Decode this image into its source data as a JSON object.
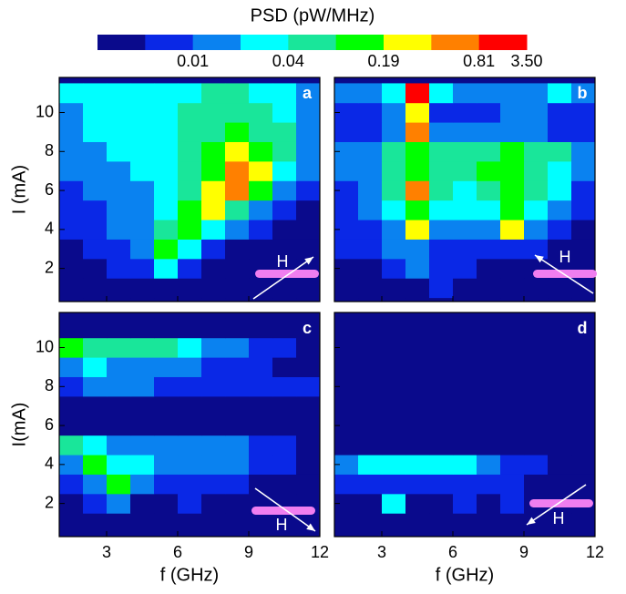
{
  "colorbar": {
    "title": "PSD (pW/MHz)",
    "colors": [
      "#0a0a8c",
      "#0a28e6",
      "#0a82f0",
      "#00ffff",
      "#19e69a",
      "#00ff00",
      "#ffff00",
      "#ff8000",
      "#ff0000"
    ],
    "bounds": [
      0.0023,
      0.0048,
      0.01,
      0.02,
      0.04,
      0.087,
      0.19,
      0.39,
      0.81,
      3.5
    ],
    "ticks": [
      0.01,
      0.04,
      0.19,
      0.81,
      {
        "value": 3.5,
        "label": "3.50"
      }
    ]
  },
  "chart_data": [
    {
      "type": "heatmap",
      "label": "a",
      "annotation": "H",
      "ylabel": "I (mA)",
      "xlim": [
        1,
        12
      ],
      "ylim": [
        0.3,
        11.8
      ],
      "xticks": [
        3,
        6,
        9,
        12
      ],
      "yticks": [
        2,
        4,
        6,
        8,
        10
      ],
      "tick_labels": {
        "x": false,
        "y": true
      },
      "x": [
        1.5,
        2.5,
        3.5,
        4.5,
        5.5,
        6.5,
        7.5,
        8.5,
        9.5,
        10.5,
        11.5
      ],
      "y": [
        1,
        2,
        3,
        4,
        5,
        6,
        7,
        8,
        9,
        10,
        11
      ],
      "z": [
        [
          0.003,
          0.003,
          0.003,
          0.003,
          0.003,
          0.003,
          0.003,
          0.003,
          0.003,
          0.003,
          0.003
        ],
        [
          0.003,
          0.003,
          0.007,
          0.007,
          0.03,
          0.007,
          0.003,
          0.003,
          0.003,
          0.003,
          0.003
        ],
        [
          0.003,
          0.007,
          0.007,
          0.015,
          0.13,
          0.03,
          0.007,
          0.003,
          0.003,
          0.003,
          0.003
        ],
        [
          0.007,
          0.007,
          0.015,
          0.015,
          0.06,
          0.13,
          0.03,
          0.015,
          0.007,
          0.003,
          0.003
        ],
        [
          0.007,
          0.007,
          0.015,
          0.015,
          0.03,
          0.13,
          0.28,
          0.06,
          0.015,
          0.007,
          0.003
        ],
        [
          0.007,
          0.015,
          0.015,
          0.015,
          0.03,
          0.06,
          0.28,
          0.6,
          0.13,
          0.015,
          0.007
        ],
        [
          0.015,
          0.015,
          0.015,
          0.03,
          0.03,
          0.06,
          0.13,
          0.6,
          0.28,
          0.03,
          0.015
        ],
        [
          0.015,
          0.015,
          0.03,
          0.03,
          0.03,
          0.06,
          0.13,
          0.28,
          0.13,
          0.06,
          0.015
        ],
        [
          0.015,
          0.03,
          0.03,
          0.03,
          0.03,
          0.06,
          0.06,
          0.13,
          0.06,
          0.06,
          0.015
        ],
        [
          0.015,
          0.03,
          0.03,
          0.03,
          0.03,
          0.06,
          0.06,
          0.06,
          0.06,
          0.03,
          0.015
        ],
        [
          0.03,
          0.03,
          0.03,
          0.03,
          0.03,
          0.03,
          0.06,
          0.06,
          0.03,
          0.03,
          0.015
        ]
      ]
    },
    {
      "type": "heatmap",
      "label": "b",
      "annotation": "H",
      "xlim": [
        1,
        12
      ],
      "ylim": [
        0.3,
        11.8
      ],
      "xticks": [
        3,
        6,
        9,
        12
      ],
      "yticks": [
        2,
        4,
        6,
        8,
        10
      ],
      "tick_labels": {
        "x": false,
        "y": false
      },
      "x": [
        1.5,
        2.5,
        3.5,
        4.5,
        5.5,
        6.5,
        7.5,
        8.5,
        9.5,
        10.5,
        11.5
      ],
      "y": [
        1,
        2,
        3,
        4,
        5,
        6,
        7,
        8,
        9,
        10,
        11
      ],
      "z": [
        [
          0.003,
          0.003,
          0.003,
          0.003,
          0.007,
          0.003,
          0.003,
          0.003,
          0.003,
          0.003,
          0.003
        ],
        [
          0.003,
          0.003,
          0.007,
          0.015,
          0.007,
          0.007,
          0.003,
          0.003,
          0.003,
          0.003,
          0.003
        ],
        [
          0.007,
          0.007,
          0.015,
          0.015,
          0.007,
          0.007,
          0.007,
          0.007,
          0.007,
          0.003,
          0.003
        ],
        [
          0.007,
          0.007,
          0.015,
          0.28,
          0.015,
          0.015,
          0.015,
          0.28,
          0.015,
          0.007,
          0.003
        ],
        [
          0.007,
          0.015,
          0.03,
          0.13,
          0.03,
          0.03,
          0.03,
          0.13,
          0.03,
          0.015,
          0.007
        ],
        [
          0.007,
          0.015,
          0.06,
          0.6,
          0.06,
          0.03,
          0.06,
          0.13,
          0.06,
          0.03,
          0.007
        ],
        [
          0.015,
          0.015,
          0.06,
          0.13,
          0.06,
          0.06,
          0.13,
          0.13,
          0.06,
          0.03,
          0.015
        ],
        [
          0.015,
          0.015,
          0.06,
          0.13,
          0.06,
          0.06,
          0.06,
          0.13,
          0.06,
          0.06,
          0.015
        ],
        [
          0.007,
          0.007,
          0.015,
          0.6,
          0.015,
          0.015,
          0.015,
          0.015,
          0.015,
          0.007,
          0.007
        ],
        [
          0.007,
          0.007,
          0.015,
          0.28,
          0.007,
          0.007,
          0.007,
          0.015,
          0.015,
          0.007,
          0.007
        ],
        [
          0.015,
          0.015,
          0.03,
          1.6,
          0.03,
          0.015,
          0.015,
          0.015,
          0.015,
          0.03,
          0.015
        ]
      ]
    },
    {
      "type": "heatmap",
      "label": "c",
      "annotation": "H",
      "xlabel": "f (GHz)",
      "ylabel": "I(mA)",
      "xlim": [
        1,
        12
      ],
      "ylim": [
        0.3,
        11.8
      ],
      "xticks": [
        3,
        6,
        9,
        12
      ],
      "yticks": [
        2,
        4,
        6,
        8,
        10
      ],
      "tick_labels": {
        "x": true,
        "y": true
      },
      "x": [
        1.5,
        2.5,
        3.5,
        4.5,
        5.5,
        6.5,
        7.5,
        8.5,
        9.5,
        10.5,
        11.5
      ],
      "y": [
        1,
        2,
        3,
        4,
        5,
        6,
        7,
        8,
        9,
        10,
        11
      ],
      "z": [
        [
          0.003,
          0.003,
          0.003,
          0.003,
          0.003,
          0.003,
          0.003,
          0.003,
          0.003,
          0.003,
          0.003
        ],
        [
          0.003,
          0.007,
          0.015,
          0.003,
          0.003,
          0.007,
          0.003,
          0.003,
          0.003,
          0.003,
          0.003
        ],
        [
          0.007,
          0.015,
          0.13,
          0.015,
          0.007,
          0.007,
          0.007,
          0.007,
          0.003,
          0.003,
          0.003
        ],
        [
          0.015,
          0.13,
          0.03,
          0.03,
          0.015,
          0.015,
          0.015,
          0.015,
          0.007,
          0.007,
          0.003
        ],
        [
          0.06,
          0.03,
          0.015,
          0.015,
          0.015,
          0.015,
          0.015,
          0.015,
          0.007,
          0.007,
          0.003
        ],
        [
          0.003,
          0.003,
          0.003,
          0.003,
          0.003,
          0.003,
          0.003,
          0.003,
          0.003,
          0.003,
          0.003
        ],
        [
          0.003,
          0.003,
          0.003,
          0.003,
          0.003,
          0.003,
          0.003,
          0.003,
          0.003,
          0.003,
          0.003
        ],
        [
          0.007,
          0.015,
          0.015,
          0.015,
          0.007,
          0.007,
          0.007,
          0.007,
          0.007,
          0.007,
          0.007
        ],
        [
          0.015,
          0.03,
          0.015,
          0.015,
          0.015,
          0.015,
          0.007,
          0.007,
          0.007,
          0.003,
          0.003
        ],
        [
          0.13,
          0.06,
          0.06,
          0.06,
          0.06,
          0.03,
          0.015,
          0.015,
          0.007,
          0.007,
          0.003
        ],
        [
          0.003,
          0.003,
          0.003,
          0.003,
          0.003,
          0.003,
          0.003,
          0.003,
          0.003,
          0.003,
          0.003
        ]
      ]
    },
    {
      "type": "heatmap",
      "label": "d",
      "annotation": "H",
      "xlabel": "f (GHz)",
      "xlim": [
        1,
        12
      ],
      "ylim": [
        0.3,
        11.8
      ],
      "xticks": [
        3,
        6,
        9,
        12
      ],
      "yticks": [
        2,
        4,
        6,
        8,
        10
      ],
      "tick_labels": {
        "x": true,
        "y": false
      },
      "x": [
        1.5,
        2.5,
        3.5,
        4.5,
        5.5,
        6.5,
        7.5,
        8.5,
        9.5,
        10.5,
        11.5
      ],
      "y": [
        1,
        2,
        3,
        4,
        5,
        6,
        7,
        8,
        9,
        10,
        11
      ],
      "z": [
        [
          0.003,
          0.003,
          0.003,
          0.003,
          0.003,
          0.003,
          0.003,
          0.003,
          0.003,
          0.003,
          0.003
        ],
        [
          0.003,
          0.003,
          0.03,
          0.003,
          0.003,
          0.007,
          0.003,
          0.007,
          0.003,
          0.003,
          0.003
        ],
        [
          0.007,
          0.007,
          0.007,
          0.007,
          0.007,
          0.007,
          0.007,
          0.007,
          0.003,
          0.003,
          0.003
        ],
        [
          0.015,
          0.03,
          0.03,
          0.03,
          0.03,
          0.03,
          0.015,
          0.007,
          0.007,
          0.003,
          0.003
        ],
        [
          0.003,
          0.003,
          0.003,
          0.003,
          0.003,
          0.003,
          0.003,
          0.003,
          0.003,
          0.003,
          0.003
        ],
        [
          0.003,
          0.003,
          0.003,
          0.003,
          0.003,
          0.003,
          0.003,
          0.003,
          0.003,
          0.003,
          0.003
        ],
        [
          0.003,
          0.003,
          0.003,
          0.003,
          0.003,
          0.003,
          0.003,
          0.003,
          0.003,
          0.003,
          0.003
        ],
        [
          0.003,
          0.003,
          0.003,
          0.003,
          0.003,
          0.003,
          0.003,
          0.003,
          0.003,
          0.003,
          0.003
        ],
        [
          0.003,
          0.003,
          0.003,
          0.003,
          0.003,
          0.003,
          0.003,
          0.003,
          0.003,
          0.003,
          0.003
        ],
        [
          0.003,
          0.003,
          0.003,
          0.003,
          0.003,
          0.003,
          0.003,
          0.003,
          0.003,
          0.003,
          0.003
        ],
        [
          0.003,
          0.003,
          0.003,
          0.003,
          0.003,
          0.003,
          0.003,
          0.003,
          0.003,
          0.003,
          0.003
        ]
      ]
    }
  ]
}
